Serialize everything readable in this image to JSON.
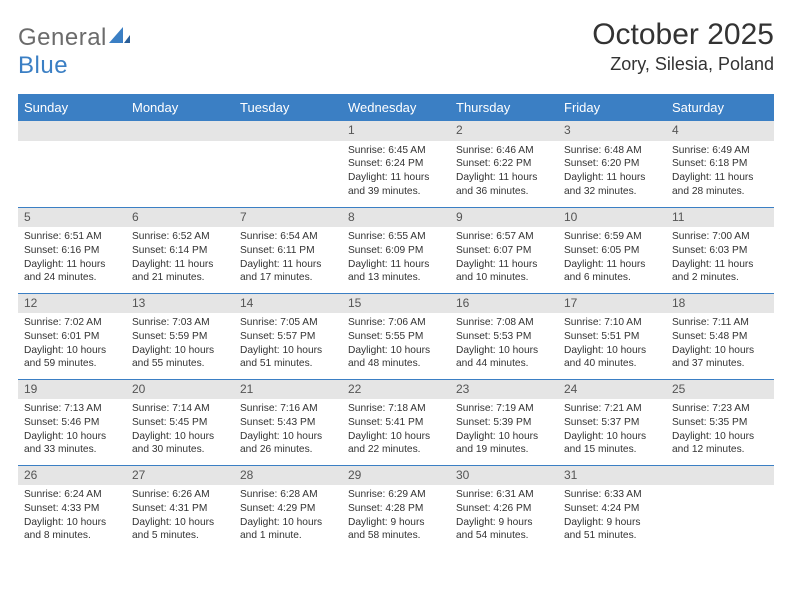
{
  "logo": {
    "text1": "General",
    "text2": "Blue"
  },
  "title": "October 2025",
  "location": "Zory, Silesia, Poland",
  "colors": {
    "header_bg": "#3b7fc4",
    "header_text": "#ffffff",
    "daynum_bg": "#e5e5e5",
    "border": "#3b7fc4",
    "text": "#333333",
    "logo_gray": "#6b6b6b",
    "logo_blue": "#3b7fc4"
  },
  "weekdays": [
    "Sunday",
    "Monday",
    "Tuesday",
    "Wednesday",
    "Thursday",
    "Friday",
    "Saturday"
  ],
  "weeks": [
    [
      {
        "n": "",
        "sr": "",
        "ss": "",
        "dl": ""
      },
      {
        "n": "",
        "sr": "",
        "ss": "",
        "dl": ""
      },
      {
        "n": "",
        "sr": "",
        "ss": "",
        "dl": ""
      },
      {
        "n": "1",
        "sr": "6:45 AM",
        "ss": "6:24 PM",
        "dl": "11 hours and 39 minutes."
      },
      {
        "n": "2",
        "sr": "6:46 AM",
        "ss": "6:22 PM",
        "dl": "11 hours and 36 minutes."
      },
      {
        "n": "3",
        "sr": "6:48 AM",
        "ss": "6:20 PM",
        "dl": "11 hours and 32 minutes."
      },
      {
        "n": "4",
        "sr": "6:49 AM",
        "ss": "6:18 PM",
        "dl": "11 hours and 28 minutes."
      }
    ],
    [
      {
        "n": "5",
        "sr": "6:51 AM",
        "ss": "6:16 PM",
        "dl": "11 hours and 24 minutes."
      },
      {
        "n": "6",
        "sr": "6:52 AM",
        "ss": "6:14 PM",
        "dl": "11 hours and 21 minutes."
      },
      {
        "n": "7",
        "sr": "6:54 AM",
        "ss": "6:11 PM",
        "dl": "11 hours and 17 minutes."
      },
      {
        "n": "8",
        "sr": "6:55 AM",
        "ss": "6:09 PM",
        "dl": "11 hours and 13 minutes."
      },
      {
        "n": "9",
        "sr": "6:57 AM",
        "ss": "6:07 PM",
        "dl": "11 hours and 10 minutes."
      },
      {
        "n": "10",
        "sr": "6:59 AM",
        "ss": "6:05 PM",
        "dl": "11 hours and 6 minutes."
      },
      {
        "n": "11",
        "sr": "7:00 AM",
        "ss": "6:03 PM",
        "dl": "11 hours and 2 minutes."
      }
    ],
    [
      {
        "n": "12",
        "sr": "7:02 AM",
        "ss": "6:01 PM",
        "dl": "10 hours and 59 minutes."
      },
      {
        "n": "13",
        "sr": "7:03 AM",
        "ss": "5:59 PM",
        "dl": "10 hours and 55 minutes."
      },
      {
        "n": "14",
        "sr": "7:05 AM",
        "ss": "5:57 PM",
        "dl": "10 hours and 51 minutes."
      },
      {
        "n": "15",
        "sr": "7:06 AM",
        "ss": "5:55 PM",
        "dl": "10 hours and 48 minutes."
      },
      {
        "n": "16",
        "sr": "7:08 AM",
        "ss": "5:53 PM",
        "dl": "10 hours and 44 minutes."
      },
      {
        "n": "17",
        "sr": "7:10 AM",
        "ss": "5:51 PM",
        "dl": "10 hours and 40 minutes."
      },
      {
        "n": "18",
        "sr": "7:11 AM",
        "ss": "5:48 PM",
        "dl": "10 hours and 37 minutes."
      }
    ],
    [
      {
        "n": "19",
        "sr": "7:13 AM",
        "ss": "5:46 PM",
        "dl": "10 hours and 33 minutes."
      },
      {
        "n": "20",
        "sr": "7:14 AM",
        "ss": "5:45 PM",
        "dl": "10 hours and 30 minutes."
      },
      {
        "n": "21",
        "sr": "7:16 AM",
        "ss": "5:43 PM",
        "dl": "10 hours and 26 minutes."
      },
      {
        "n": "22",
        "sr": "7:18 AM",
        "ss": "5:41 PM",
        "dl": "10 hours and 22 minutes."
      },
      {
        "n": "23",
        "sr": "7:19 AM",
        "ss": "5:39 PM",
        "dl": "10 hours and 19 minutes."
      },
      {
        "n": "24",
        "sr": "7:21 AM",
        "ss": "5:37 PM",
        "dl": "10 hours and 15 minutes."
      },
      {
        "n": "25",
        "sr": "7:23 AM",
        "ss": "5:35 PM",
        "dl": "10 hours and 12 minutes."
      }
    ],
    [
      {
        "n": "26",
        "sr": "6:24 AM",
        "ss": "4:33 PM",
        "dl": "10 hours and 8 minutes."
      },
      {
        "n": "27",
        "sr": "6:26 AM",
        "ss": "4:31 PM",
        "dl": "10 hours and 5 minutes."
      },
      {
        "n": "28",
        "sr": "6:28 AM",
        "ss": "4:29 PM",
        "dl": "10 hours and 1 minute."
      },
      {
        "n": "29",
        "sr": "6:29 AM",
        "ss": "4:28 PM",
        "dl": "9 hours and 58 minutes."
      },
      {
        "n": "30",
        "sr": "6:31 AM",
        "ss": "4:26 PM",
        "dl": "9 hours and 54 minutes."
      },
      {
        "n": "31",
        "sr": "6:33 AM",
        "ss": "4:24 PM",
        "dl": "9 hours and 51 minutes."
      },
      {
        "n": "",
        "sr": "",
        "ss": "",
        "dl": ""
      }
    ]
  ],
  "labels": {
    "sunrise": "Sunrise:",
    "sunset": "Sunset:",
    "daylight": "Daylight:"
  }
}
